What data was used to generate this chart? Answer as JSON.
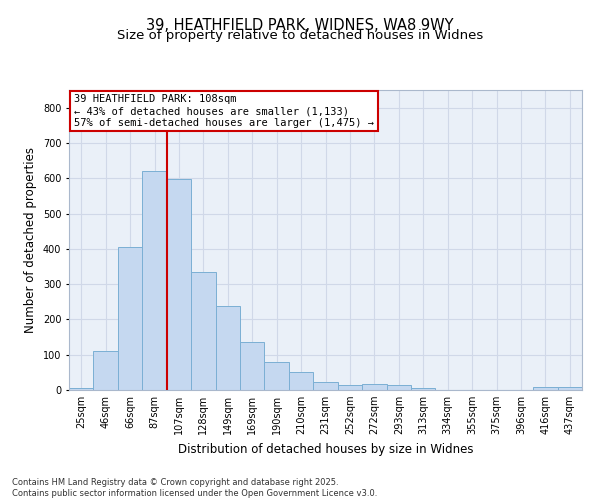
{
  "title_line1": "39, HEATHFIELD PARK, WIDNES, WA8 9WY",
  "title_line2": "Size of property relative to detached houses in Widnes",
  "xlabel": "Distribution of detached houses by size in Widnes",
  "ylabel": "Number of detached properties",
  "categories": [
    "25sqm",
    "46sqm",
    "66sqm",
    "87sqm",
    "107sqm",
    "128sqm",
    "149sqm",
    "169sqm",
    "190sqm",
    "210sqm",
    "231sqm",
    "252sqm",
    "272sqm",
    "293sqm",
    "313sqm",
    "334sqm",
    "355sqm",
    "375sqm",
    "396sqm",
    "416sqm",
    "437sqm"
  ],
  "values": [
    5,
    110,
    405,
    620,
    598,
    335,
    237,
    137,
    80,
    52,
    22,
    15,
    18,
    15,
    5,
    0,
    0,
    0,
    0,
    8,
    8
  ],
  "bar_color": "#c5d8f0",
  "bar_edge_color": "#7bafd4",
  "grid_color": "#d0d8e8",
  "background_color": "#eaf0f8",
  "vline_x_index": 4,
  "vline_color": "#cc0000",
  "annotation_text": "39 HEATHFIELD PARK: 108sqm\n← 43% of detached houses are smaller (1,133)\n57% of semi-detached houses are larger (1,475) →",
  "annotation_box_color": "#cc0000",
  "ylim": [
    0,
    850
  ],
  "yticks": [
    0,
    100,
    200,
    300,
    400,
    500,
    600,
    700,
    800
  ],
  "footnote": "Contains HM Land Registry data © Crown copyright and database right 2025.\nContains public sector information licensed under the Open Government Licence v3.0.",
  "title_fontsize": 10.5,
  "subtitle_fontsize": 9.5,
  "axis_label_fontsize": 8.5,
  "tick_fontsize": 7,
  "annotation_fontsize": 7.5,
  "footnote_fontsize": 6.0
}
